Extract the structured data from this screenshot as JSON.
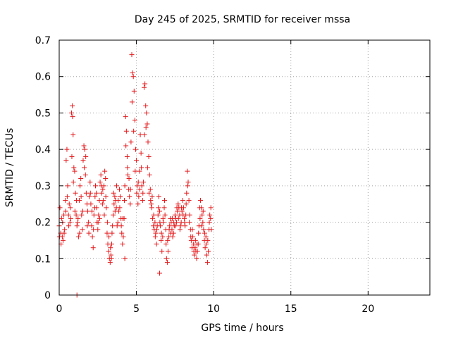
{
  "chart_data": {
    "type": "scatter",
    "title": "Day 245 of 2025, SRMTID for receiver mssa",
    "xlabel": "GPS time / hours",
    "ylabel": "SRMTID / TECUs",
    "xlim": [
      0,
      24
    ],
    "ylim": [
      0,
      0.7
    ],
    "xticks": [
      0,
      5,
      10,
      15,
      20
    ],
    "yticks": [
      0,
      0.1,
      0.2,
      0.3,
      0.4,
      0.5,
      0.6,
      0.7
    ],
    "xtick_labels": [
      "0",
      "5",
      "10",
      "15",
      "20"
    ],
    "ytick_labels": [
      "0",
      "0.1",
      "0.2",
      "0.3",
      "0.4",
      "0.5",
      "0.6",
      "0.7"
    ],
    "grid": true,
    "marker": "+",
    "colors": {
      "series": "#e41a1c",
      "grid": "#a0a0a0",
      "axes": "#000000"
    },
    "series": [
      {
        "name": "mssa",
        "points": [
          [
            0.0,
            0.19
          ],
          [
            0.05,
            0.24
          ],
          [
            0.1,
            0.17
          ],
          [
            0.15,
            0.21
          ],
          [
            0.2,
            0.16
          ],
          [
            0.25,
            0.15
          ],
          [
            0.3,
            0.22
          ],
          [
            0.35,
            0.18
          ],
          [
            0.4,
            0.26
          ],
          [
            0.45,
            0.37
          ],
          [
            0.5,
            0.4
          ],
          [
            0.55,
            0.3
          ],
          [
            0.6,
            0.22
          ],
          [
            0.65,
            0.25
          ],
          [
            0.7,
            0.2
          ],
          [
            0.75,
            0.21
          ],
          [
            0.8,
            0.5
          ],
          [
            0.85,
            0.52
          ],
          [
            0.87,
            0.49
          ],
          [
            0.9,
            0.44
          ],
          [
            0.95,
            0.35
          ],
          [
            1.0,
            0.34
          ],
          [
            1.05,
            0.28
          ],
          [
            1.1,
            0.22
          ],
          [
            1.15,
            0.19
          ],
          [
            1.2,
            0.2
          ],
          [
            1.25,
            0.16
          ],
          [
            1.3,
            0.26
          ],
          [
            1.35,
            0.3
          ],
          [
            1.4,
            0.32
          ],
          [
            1.45,
            0.22
          ],
          [
            1.5,
            0.18
          ],
          [
            1.55,
            0.37
          ],
          [
            1.6,
            0.41
          ],
          [
            1.65,
            0.4
          ],
          [
            1.7,
            0.33
          ],
          [
            1.75,
            0.28
          ],
          [
            1.8,
            0.25
          ],
          [
            1.85,
            0.23
          ],
          [
            1.9,
            0.2
          ],
          [
            1.95,
            0.27
          ],
          [
            2.0,
            0.31
          ],
          [
            2.05,
            0.25
          ],
          [
            2.1,
            0.19
          ],
          [
            2.15,
            0.16
          ],
          [
            2.2,
            0.13
          ],
          [
            2.25,
            0.22
          ],
          [
            2.3,
            0.24
          ],
          [
            2.35,
            0.3
          ],
          [
            2.4,
            0.28
          ],
          [
            2.45,
            0.2
          ],
          [
            2.5,
            0.18
          ],
          [
            2.55,
            0.22
          ],
          [
            2.6,
            0.26
          ],
          [
            2.65,
            0.31
          ],
          [
            2.7,
            0.33
          ],
          [
            2.75,
            0.28
          ],
          [
            2.8,
            0.25
          ],
          [
            2.85,
            0.26
          ],
          [
            2.9,
            0.3
          ],
          [
            2.95,
            0.34
          ],
          [
            3.0,
            0.32
          ],
          [
            3.05,
            0.24
          ],
          [
            3.1,
            0.17
          ],
          [
            3.15,
            0.14
          ],
          [
            3.2,
            0.12
          ],
          [
            3.25,
            0.1
          ],
          [
            3.3,
            0.09
          ],
          [
            3.35,
            0.11
          ],
          [
            3.4,
            0.14
          ],
          [
            3.45,
            0.19
          ],
          [
            3.5,
            0.22
          ],
          [
            3.55,
            0.25
          ],
          [
            3.6,
            0.27
          ],
          [
            3.65,
            0.26
          ],
          [
            3.7,
            0.24
          ],
          [
            3.75,
            0.19
          ],
          [
            3.8,
            0.2
          ],
          [
            3.85,
            0.23
          ],
          [
            3.9,
            0.29
          ],
          [
            3.95,
            0.27
          ],
          [
            4.0,
            0.21
          ],
          [
            4.05,
            0.17
          ],
          [
            4.1,
            0.14
          ],
          [
            4.15,
            0.16
          ],
          [
            4.2,
            0.21
          ],
          [
            4.25,
            0.3
          ],
          [
            4.3,
            0.49
          ],
          [
            4.35,
            0.45
          ],
          [
            4.4,
            0.38
          ],
          [
            4.45,
            0.33
          ],
          [
            4.5,
            0.29
          ],
          [
            4.55,
            0.27
          ],
          [
            4.6,
            0.25
          ],
          [
            4.65,
            0.42
          ],
          [
            4.7,
            0.66
          ],
          [
            4.75,
            0.61
          ],
          [
            4.8,
            0.6
          ],
          [
            4.85,
            0.56
          ],
          [
            4.9,
            0.48
          ],
          [
            4.95,
            0.4
          ],
          [
            5.0,
            0.37
          ],
          [
            5.05,
            0.3
          ],
          [
            5.1,
            0.25
          ],
          [
            5.15,
            0.27
          ],
          [
            5.2,
            0.34
          ],
          [
            5.25,
            0.44
          ],
          [
            5.3,
            0.39
          ],
          [
            5.35,
            0.3
          ],
          [
            5.4,
            0.26
          ],
          [
            5.45,
            0.31
          ],
          [
            5.5,
            0.57
          ],
          [
            5.55,
            0.58
          ],
          [
            5.6,
            0.52
          ],
          [
            5.65,
            0.5
          ],
          [
            5.7,
            0.47
          ],
          [
            5.75,
            0.42
          ],
          [
            5.8,
            0.38
          ],
          [
            5.85,
            0.33
          ],
          [
            5.9,
            0.29
          ],
          [
            5.95,
            0.25
          ],
          [
            6.0,
            0.24
          ],
          [
            6.05,
            0.21
          ],
          [
            6.1,
            0.19
          ],
          [
            6.15,
            0.18
          ],
          [
            6.2,
            0.2
          ],
          [
            6.25,
            0.17
          ],
          [
            6.3,
            0.14
          ],
          [
            6.35,
            0.19
          ],
          [
            6.4,
            0.22
          ],
          [
            6.45,
            0.27
          ],
          [
            6.5,
            0.23
          ],
          [
            6.55,
            0.19
          ],
          [
            6.6,
            0.15
          ],
          [
            6.65,
            0.12
          ],
          [
            6.7,
            0.16
          ],
          [
            6.75,
            0.2
          ],
          [
            6.8,
            0.24
          ],
          [
            6.85,
            0.22
          ],
          [
            6.9,
            0.18
          ],
          [
            6.95,
            0.1
          ],
          [
            7.0,
            0.09
          ],
          [
            7.05,
            0.12
          ],
          [
            7.1,
            0.16
          ],
          [
            7.15,
            0.19
          ],
          [
            7.2,
            0.21
          ],
          [
            7.25,
            0.2
          ],
          [
            7.3,
            0.18
          ],
          [
            7.35,
            0.16
          ],
          [
            7.4,
            0.17
          ],
          [
            7.45,
            0.19
          ],
          [
            7.5,
            0.22
          ],
          [
            7.55,
            0.21
          ],
          [
            7.6,
            0.2
          ],
          [
            7.65,
            0.23
          ],
          [
            7.7,
            0.25
          ],
          [
            7.75,
            0.24
          ],
          [
            7.8,
            0.22
          ],
          [
            7.85,
            0.19
          ],
          [
            7.9,
            0.2
          ],
          [
            7.95,
            0.23
          ],
          [
            8.0,
            0.26
          ],
          [
            8.05,
            0.24
          ],
          [
            8.1,
            0.21
          ],
          [
            8.15,
            0.19
          ],
          [
            8.2,
            0.22
          ],
          [
            8.25,
            0.28
          ],
          [
            8.3,
            0.34
          ],
          [
            8.35,
            0.31
          ],
          [
            8.4,
            0.26
          ],
          [
            8.45,
            0.22
          ],
          [
            8.5,
            0.18
          ],
          [
            8.55,
            0.15
          ],
          [
            8.6,
            0.13
          ],
          [
            8.65,
            0.16
          ],
          [
            8.7,
            0.14
          ],
          [
            8.75,
            0.11
          ],
          [
            8.8,
            0.13
          ],
          [
            8.85,
            0.12
          ],
          [
            8.9,
            0.1
          ],
          [
            8.95,
            0.12
          ],
          [
            9.0,
            0.14
          ],
          [
            9.05,
            0.19
          ],
          [
            9.1,
            0.24
          ],
          [
            9.15,
            0.26
          ],
          [
            9.2,
            0.24
          ],
          [
            9.25,
            0.22
          ],
          [
            9.3,
            0.2
          ],
          [
            9.35,
            0.18
          ],
          [
            9.4,
            0.15
          ],
          [
            9.45,
            0.13
          ],
          [
            9.5,
            0.16
          ],
          [
            9.55,
            0.11
          ],
          [
            9.6,
            0.09
          ],
          [
            9.65,
            0.12
          ],
          [
            9.7,
            0.18
          ],
          [
            9.75,
            0.22
          ],
          [
            9.8,
            0.21
          ],
          [
            9.85,
            0.18
          ],
          [
            0.02,
            0.16
          ],
          [
            0.12,
            0.14
          ],
          [
            0.22,
            0.2
          ],
          [
            0.32,
            0.17
          ],
          [
            0.42,
            0.23
          ],
          [
            0.52,
            0.27
          ],
          [
            0.62,
            0.19
          ],
          [
            0.72,
            0.24
          ],
          [
            0.82,
            0.38
          ],
          [
            0.92,
            0.31
          ],
          [
            1.02,
            0.23
          ],
          [
            1.12,
            0.26
          ],
          [
            1.22,
            0.21
          ],
          [
            1.32,
            0.17
          ],
          [
            1.42,
            0.27
          ],
          [
            1.52,
            0.23
          ],
          [
            1.62,
            0.35
          ],
          [
            1.72,
            0.38
          ],
          [
            1.82,
            0.19
          ],
          [
            1.92,
            0.17
          ],
          [
            2.02,
            0.28
          ],
          [
            2.12,
            0.23
          ],
          [
            2.22,
            0.18
          ],
          [
            2.32,
            0.27
          ],
          [
            2.42,
            0.24
          ],
          [
            2.52,
            0.2
          ],
          [
            2.62,
            0.21
          ],
          [
            2.72,
            0.3
          ],
          [
            2.82,
            0.29
          ],
          [
            2.92,
            0.22
          ],
          [
            3.02,
            0.27
          ],
          [
            3.12,
            0.2
          ],
          [
            3.22,
            0.16
          ],
          [
            3.32,
            0.13
          ],
          [
            3.42,
            0.17
          ],
          [
            3.52,
            0.28
          ],
          [
            3.62,
            0.23
          ],
          [
            3.72,
            0.3
          ],
          [
            3.82,
            0.26
          ],
          [
            3.92,
            0.24
          ],
          [
            4.02,
            0.19
          ],
          [
            4.12,
            0.21
          ],
          [
            4.22,
            0.26
          ],
          [
            4.32,
            0.41
          ],
          [
            4.42,
            0.35
          ],
          [
            4.52,
            0.32
          ],
          [
            4.62,
            0.29
          ],
          [
            4.72,
            0.53
          ],
          [
            4.82,
            0.45
          ],
          [
            4.92,
            0.34
          ],
          [
            5.02,
            0.28
          ],
          [
            5.12,
            0.31
          ],
          [
            5.22,
            0.29
          ],
          [
            5.32,
            0.35
          ],
          [
            5.42,
            0.28
          ],
          [
            5.52,
            0.44
          ],
          [
            5.62,
            0.46
          ],
          [
            5.72,
            0.35
          ],
          [
            5.82,
            0.28
          ],
          [
            5.92,
            0.26
          ],
          [
            6.02,
            0.27
          ],
          [
            6.12,
            0.22
          ],
          [
            6.22,
            0.16
          ],
          [
            6.32,
            0.18
          ],
          [
            6.42,
            0.24
          ],
          [
            6.52,
            0.2
          ],
          [
            6.62,
            0.17
          ],
          [
            6.72,
            0.21
          ],
          [
            6.82,
            0.26
          ],
          [
            6.92,
            0.14
          ],
          [
            7.02,
            0.15
          ],
          [
            7.12,
            0.18
          ],
          [
            7.22,
            0.17
          ],
          [
            7.32,
            0.21
          ],
          [
            7.42,
            0.2
          ],
          [
            7.52,
            0.19
          ],
          [
            7.62,
            0.24
          ],
          [
            7.72,
            0.21
          ],
          [
            7.82,
            0.18
          ],
          [
            7.92,
            0.24
          ],
          [
            8.02,
            0.22
          ],
          [
            8.12,
            0.2
          ],
          [
            8.22,
            0.25
          ],
          [
            8.32,
            0.3
          ],
          [
            8.42,
            0.2
          ],
          [
            8.52,
            0.16
          ],
          [
            8.62,
            0.18
          ],
          [
            8.72,
            0.12
          ],
          [
            8.82,
            0.15
          ],
          [
            8.92,
            0.14
          ],
          [
            9.02,
            0.17
          ],
          [
            9.12,
            0.21
          ],
          [
            9.22,
            0.19
          ],
          [
            9.32,
            0.23
          ],
          [
            9.42,
            0.17
          ],
          [
            9.52,
            0.14
          ],
          [
            9.62,
            0.15
          ],
          [
            9.72,
            0.2
          ],
          [
            9.82,
            0.24
          ],
          [
            4.25,
            0.1
          ],
          [
            6.5,
            0.06
          ],
          [
            3.38,
            0.1
          ],
          [
            1.15,
            0.0
          ]
        ]
      }
    ]
  }
}
